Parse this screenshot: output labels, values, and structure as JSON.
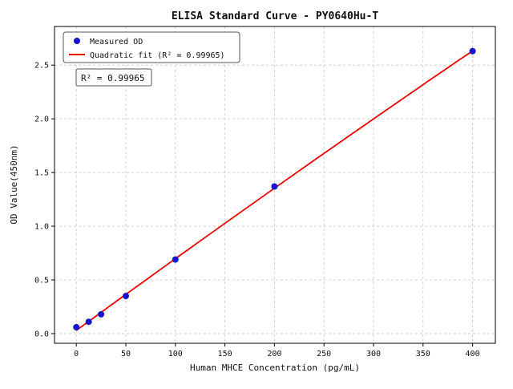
{
  "figure": {
    "annotation": "R² = 0.99965"
  },
  "chart_data": {
    "type": "scatter",
    "title": "ELISA Standard Curve - PY0640Hu-T",
    "xlabel": "Human MHCE Concentration (pg/mL)",
    "ylabel": "OD Value(450nm)",
    "xlim": [
      -22,
      423
    ],
    "ylim": [
      -0.09,
      2.86
    ],
    "x_ticks": [
      0,
      50,
      100,
      150,
      200,
      250,
      300,
      350,
      400
    ],
    "x_tick_labels": [
      "0",
      "50",
      "100",
      "150",
      "200",
      "250",
      "300",
      "350",
      "400"
    ],
    "y_ticks": [
      0.0,
      0.5,
      1.0,
      1.5,
      2.0,
      2.5
    ],
    "y_tick_labels": [
      "0.0",
      "0.5",
      "1.0",
      "1.5",
      "2.0",
      "2.5"
    ],
    "grid": true,
    "legend_position": "upper left",
    "series": [
      {
        "name": "Measured OD",
        "type": "scatter",
        "color": "#1414cc",
        "x": [
          0,
          12.5,
          25,
          50,
          100,
          200,
          400
        ],
        "y": [
          0.06,
          0.11,
          0.18,
          0.35,
          0.69,
          1.37,
          2.63
        ]
      },
      {
        "name": "Quadratic fit (R² = 0.99965)",
        "type": "line",
        "color": "#ee0000",
        "fit": {
          "kind": "quadratic",
          "a": -5.55e-07,
          "b": 0.006731,
          "c": 0.0297,
          "x_range": [
            0,
            400
          ],
          "r_squared": 0.99965
        }
      }
    ]
  }
}
